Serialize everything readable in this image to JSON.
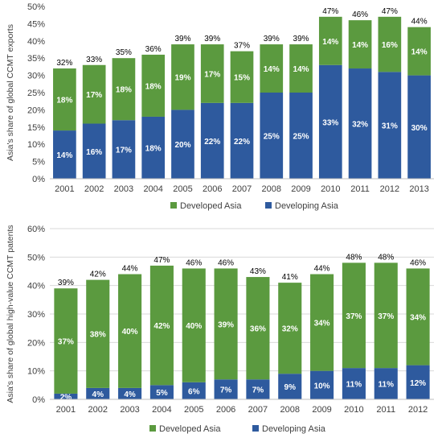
{
  "colors": {
    "developed": "#5b9a3f",
    "developing": "#2e5a9e"
  },
  "chart_data": [
    {
      "type": "bar",
      "stacked": true,
      "ylabel": "Asia's share of global CCMT exports",
      "ylim": [
        0,
        50
      ],
      "yticks": [
        0,
        5,
        10,
        15,
        20,
        25,
        30,
        35,
        40,
        45,
        50
      ],
      "grid": false,
      "legend_position": "bottom",
      "categories": [
        "2001",
        "2002",
        "2003",
        "2004",
        "2005",
        "2006",
        "2007",
        "2008",
        "2009",
        "2010",
        "2011",
        "2012",
        "2013"
      ],
      "series": [
        {
          "name": "Developing Asia",
          "values": [
            14,
            16,
            17,
            18,
            20,
            22,
            22,
            25,
            25,
            33,
            32,
            31,
            30
          ]
        },
        {
          "name": "Developed Asia",
          "values": [
            18,
            17,
            18,
            18,
            19,
            17,
            15,
            14,
            14,
            14,
            14,
            16,
            14
          ]
        }
      ],
      "totals": [
        32,
        33,
        35,
        36,
        39,
        39,
        37,
        39,
        39,
        47,
        46,
        47,
        44
      ]
    },
    {
      "type": "bar",
      "stacked": true,
      "ylabel": "Asia's share of global high-value CCMT patents",
      "ylim": [
        0,
        60
      ],
      "yticks": [
        0,
        10,
        20,
        30,
        40,
        50,
        60
      ],
      "grid": true,
      "legend_position": "bottom",
      "categories": [
        "2001",
        "2002",
        "2003",
        "2004",
        "2005",
        "2006",
        "2007",
        "2008",
        "2009",
        "2010",
        "2011",
        "2012"
      ],
      "series": [
        {
          "name": "Developing Asia",
          "values": [
            2,
            4,
            4,
            5,
            6,
            7,
            7,
            9,
            10,
            11,
            11,
            12
          ]
        },
        {
          "name": "Developed Asia",
          "values": [
            37,
            38,
            40,
            42,
            40,
            39,
            36,
            32,
            34,
            37,
            37,
            34
          ]
        }
      ],
      "totals": [
        39,
        42,
        44,
        47,
        46,
        46,
        43,
        41,
        44,
        48,
        48,
        46
      ]
    }
  ]
}
